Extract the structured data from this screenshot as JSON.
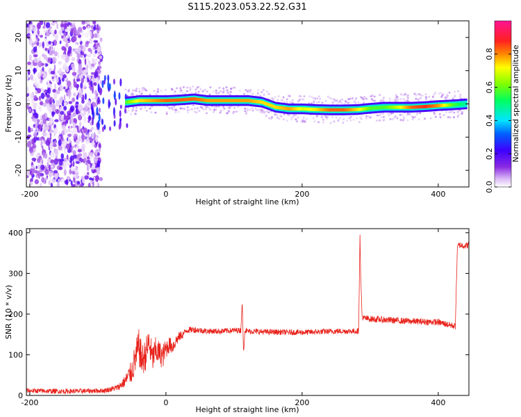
{
  "figure_title": "S115.2023.053.22.52.G31",
  "chart_data": [
    {
      "type": "heatmap",
      "title": "",
      "xlabel": "Height of straight line (km)",
      "ylabel": "Frequency (Hz)",
      "xlim": [
        -205,
        445
      ],
      "ylim": [
        -25,
        25
      ],
      "x_ticks": [
        -200,
        0,
        200,
        400
      ],
      "y_ticks": [
        -20,
        -10,
        0,
        10,
        20
      ],
      "colorbar": {
        "label": "Normalized spectral amplitude",
        "range": [
          0,
          1
        ],
        "ticks": [
          0.0,
          0.2,
          0.4,
          0.6,
          0.8
        ],
        "colormap": [
          "#ffffff",
          "#d9b8f5",
          "#8b2be2",
          "#3d00ff",
          "#0060ff",
          "#00e5ff",
          "#00ff60",
          "#80ff00",
          "#ffff00",
          "#ff8800",
          "#ff2020",
          "#ff1493"
        ]
      },
      "ridge": {
        "x": [
          -60,
          -40,
          -20,
          0,
          20,
          40,
          60,
          80,
          100,
          120,
          140,
          160,
          180,
          200,
          220,
          240,
          260,
          280,
          300,
          320,
          340,
          360,
          380,
          400,
          420,
          440
        ],
        "frequency": [
          0.5,
          1,
          1,
          1,
          1.2,
          1.5,
          1,
          1,
          1,
          1,
          0.5,
          -1,
          -1.5,
          -1.5,
          -1.7,
          -1.8,
          -1.8,
          -1.7,
          -1.3,
          -1,
          -1,
          -1,
          -0.8,
          -0.5,
          -0.3,
          0
        ],
        "amplitude": [
          0.6,
          0.75,
          0.8,
          0.85,
          0.85,
          0.85,
          0.8,
          0.8,
          0.8,
          0.8,
          0.75,
          0.75,
          0.8,
          0.7,
          0.75,
          0.85,
          0.85,
          0.75,
          0.6,
          0.6,
          0.7,
          0.85,
          0.9,
          0.8,
          0.6,
          0.5
        ]
      },
      "noise_region_x": [
        -205,
        -95
      ],
      "transition_region_x": [
        -110,
        -60
      ]
    },
    {
      "type": "line",
      "title": "",
      "xlabel": "Height of straight line (km)",
      "ylabel": "SNR (10 * v/v)",
      "xlim": [
        -205,
        445
      ],
      "ylim": [
        0,
        410
      ],
      "x_ticks": [
        -200,
        0,
        200,
        400
      ],
      "y_ticks": [
        0,
        100,
        200,
        300,
        400
      ],
      "color": "#e8221b",
      "series": [
        {
          "x": [
            -205,
            -180,
            -150,
            -120,
            -90,
            -70,
            -60,
            -50,
            -45,
            -40,
            -35,
            -30,
            -25,
            -20,
            -15,
            -10,
            -5,
            0,
            5,
            10,
            15,
            20,
            25,
            30,
            40,
            60,
            80,
            100,
            110,
            112,
            114,
            116,
            120,
            150,
            200,
            250,
            283,
            285,
            286,
            288,
            290,
            300,
            350,
            400,
            425,
            428,
            430,
            440,
            445
          ],
          "y": [
            12,
            11,
            10,
            11,
            12,
            20,
            35,
            60,
            90,
            120,
            85,
            100,
            130,
            90,
            110,
            105,
            95,
            115,
            125,
            120,
            135,
            145,
            150,
            160,
            162,
            158,
            158,
            160,
            160,
            230,
            105,
            160,
            158,
            156,
            155,
            158,
            158,
            395,
            300,
            195,
            190,
            188,
            183,
            180,
            170,
            360,
            370,
            368,
            370
          ],
          "noise_amplitude": [
            6,
            6,
            6,
            6,
            6,
            8,
            15,
            30,
            40,
            45,
            40,
            40,
            40,
            35,
            35,
            30,
            30,
            25,
            20,
            18,
            15,
            12,
            10,
            8,
            8,
            7,
            7,
            7,
            7,
            0,
            0,
            7,
            7,
            7,
            7,
            7,
            7,
            0,
            0,
            8,
            8,
            8,
            8,
            8,
            8,
            8,
            8,
            8,
            8
          ]
        }
      ]
    }
  ]
}
